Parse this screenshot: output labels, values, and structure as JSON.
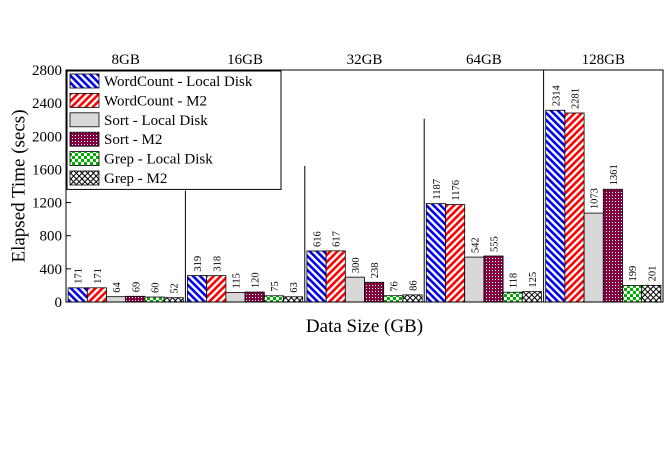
{
  "chart_data": {
    "type": "bar",
    "xlabel": "Data Size (GB)",
    "ylabel": "Elapsed Time (secs)",
    "ylim": [
      0,
      2800
    ],
    "yticks": [
      0,
      400,
      800,
      1200,
      1600,
      2000,
      2400,
      2800
    ],
    "categories": [
      "8GB",
      "16GB",
      "32GB",
      "64GB",
      "128GB"
    ],
    "legend_position": "top-left",
    "series": [
      {
        "name": "WordCount - Local Disk",
        "pattern": "diagonal-blue",
        "color": "#0000ee",
        "values": [
          171,
          319,
          616,
          1187,
          2314
        ]
      },
      {
        "name": "WordCount - M2",
        "pattern": "diagonal-red",
        "color": "#ff0000",
        "values": [
          171,
          318,
          617,
          1176,
          2281
        ]
      },
      {
        "name": "Sort - Local Disk",
        "pattern": "solid-gray",
        "color": "#d8d8d8",
        "values": [
          64,
          115,
          300,
          542,
          1073
        ]
      },
      {
        "name": "Sort - M2",
        "pattern": "dotted-maroon",
        "color": "#800040",
        "values": [
          69,
          120,
          238,
          555,
          1361
        ]
      },
      {
        "name": "Grep - Local Disk",
        "pattern": "checker-green",
        "color": "#00b000",
        "values": [
          60,
          75,
          76,
          118,
          199
        ]
      },
      {
        "name": "Grep - M2",
        "pattern": "checker-white",
        "color": "#000000",
        "values": [
          52,
          63,
          86,
          125,
          201
        ]
      }
    ]
  }
}
